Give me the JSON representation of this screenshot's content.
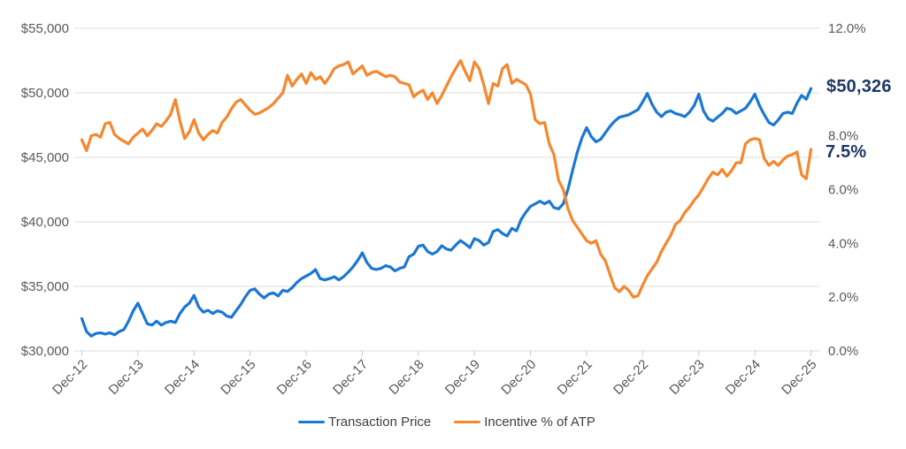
{
  "colors": {
    "price_line": "#1B77D4",
    "incentive_line": "#F5872D",
    "callout_text": "#1F3864",
    "axis_text": "#595959",
    "gridline": "#DCDCDC",
    "tick": "#C9C9C9",
    "legend_text": "#404040",
    "background": "#FFFFFF"
  },
  "end_labels": {
    "price": "$50,326",
    "incentive": "7.5%"
  },
  "legend": {
    "items": [
      {
        "label": "Transaction Price",
        "color": "#1B77D4"
      },
      {
        "label": "Incentive % of ATP",
        "color": "#F5872D"
      }
    ]
  },
  "chart_data": {
    "type": "line",
    "title": "",
    "x_start": "Dec-2012",
    "x_end": "Dec-2025",
    "frequency": "monthly",
    "grid": "horizontal",
    "legend_position": "bottom",
    "x_axis": {
      "tick_labels": [
        "Dec-12",
        "Dec-13",
        "Dec-14",
        "Dec-15",
        "Dec-16",
        "Dec-17",
        "Dec-18",
        "Dec-19",
        "Dec-20",
        "Dec-21",
        "Dec-22",
        "Dec-23",
        "Dec-24",
        "Dec-25"
      ],
      "months_per_tick": 12
    },
    "left_axis": {
      "title": "Transaction Price",
      "min": 30000,
      "max": 55000,
      "step": 5000,
      "ticks": [
        {
          "label": "$55,000",
          "value": 55000
        },
        {
          "label": "$50,000",
          "value": 50000
        },
        {
          "label": "$45,000",
          "value": 45000
        },
        {
          "label": "$40,000",
          "value": 40000
        },
        {
          "label": "$35,000",
          "value": 35000
        },
        {
          "label": "$30,000",
          "value": 30000
        }
      ]
    },
    "right_axis": {
      "title": "Incentive % of ATP",
      "min": 0,
      "max": 12,
      "step": 2,
      "ticks": [
        {
          "label": "12.0%",
          "value": 12
        },
        {
          "label": "8.0%",
          "value": 8
        },
        {
          "label": "6.0%",
          "value": 6
        },
        {
          "label": "4.0%",
          "value": 4
        },
        {
          "label": "2.0%",
          "value": 2
        },
        {
          "label": "0.0%",
          "value": 0
        }
      ],
      "note": "10.0% tick label hidden behind $50,326 callout"
    },
    "series": [
      {
        "name": "Transaction Price",
        "axis": "left",
        "color": "#1B77D4",
        "end_value": 50326,
        "values": [
          32500,
          31500,
          31150,
          31350,
          31400,
          31300,
          31400,
          31250,
          31500,
          31650,
          32300,
          33100,
          33700,
          32900,
          32100,
          32000,
          32300,
          32000,
          32200,
          32300,
          32200,
          32900,
          33400,
          33700,
          34300,
          33400,
          33000,
          33150,
          32900,
          33100,
          33000,
          32700,
          32600,
          33100,
          33600,
          34200,
          34700,
          34800,
          34400,
          34100,
          34400,
          34500,
          34250,
          34700,
          34600,
          34900,
          35300,
          35600,
          35800,
          36000,
          36300,
          35600,
          35500,
          35600,
          35750,
          35500,
          35750,
          36100,
          36500,
          37000,
          37600,
          36850,
          36400,
          36300,
          36400,
          36600,
          36500,
          36200,
          36400,
          36500,
          37300,
          37500,
          38100,
          38200,
          37700,
          37500,
          37700,
          38150,
          37900,
          37800,
          38200,
          38550,
          38300,
          38000,
          38700,
          38550,
          38200,
          38400,
          39250,
          39400,
          39100,
          38900,
          39500,
          39300,
          40200,
          40750,
          41200,
          41400,
          41600,
          41400,
          41600,
          41100,
          41000,
          41400,
          42500,
          44000,
          45400,
          46500,
          47300,
          46600,
          46200,
          46400,
          46900,
          47400,
          47800,
          48100,
          48200,
          48300,
          48500,
          48700,
          49300,
          49950,
          49100,
          48500,
          48150,
          48500,
          48600,
          48400,
          48300,
          48150,
          48500,
          49000,
          49900,
          48600,
          48000,
          47800,
          48100,
          48400,
          48800,
          48700,
          48400,
          48600,
          48800,
          49300,
          49900,
          49000,
          48300,
          47700,
          47500,
          47900,
          48400,
          48500,
          48400,
          49200,
          49800,
          49500,
          50326
        ]
      },
      {
        "name": "Incentive % of ATP",
        "axis": "right",
        "color": "#F5872D",
        "end_value": 7.5,
        "values": [
          7.85,
          7.45,
          8.0,
          8.05,
          7.95,
          8.45,
          8.5,
          8.05,
          7.9,
          7.8,
          7.7,
          7.95,
          8.1,
          8.25,
          8.0,
          8.2,
          8.45,
          8.35,
          8.55,
          8.8,
          9.35,
          8.55,
          7.9,
          8.15,
          8.6,
          8.1,
          7.85,
          8.05,
          8.2,
          8.1,
          8.5,
          8.7,
          9.0,
          9.25,
          9.35,
          9.15,
          8.95,
          8.8,
          8.85,
          8.95,
          9.05,
          9.2,
          9.4,
          9.6,
          10.25,
          9.85,
          10.1,
          10.3,
          9.95,
          10.35,
          10.1,
          10.2,
          9.95,
          10.2,
          10.5,
          10.6,
          10.65,
          10.75,
          10.3,
          10.45,
          10.6,
          10.25,
          10.35,
          10.4,
          10.3,
          10.2,
          10.25,
          10.2,
          10.0,
          9.95,
          9.9,
          9.45,
          9.6,
          9.7,
          9.35,
          9.6,
          9.2,
          9.5,
          9.85,
          10.2,
          10.5,
          10.8,
          10.4,
          10.05,
          10.75,
          10.5,
          9.9,
          9.2,
          9.95,
          9.85,
          10.5,
          10.65,
          9.95,
          10.1,
          10.0,
          9.9,
          9.55,
          8.6,
          8.45,
          8.5,
          7.7,
          7.3,
          6.35,
          6.0,
          5.3,
          4.85,
          4.6,
          4.35,
          4.1,
          4.0,
          4.1,
          3.6,
          3.35,
          2.85,
          2.35,
          2.2,
          2.4,
          2.25,
          2.0,
          2.05,
          2.45,
          2.8,
          3.05,
          3.3,
          3.7,
          4.0,
          4.3,
          4.7,
          4.85,
          5.15,
          5.35,
          5.6,
          5.8,
          6.1,
          6.4,
          6.65,
          6.55,
          6.75,
          6.5,
          6.7,
          7.0,
          7.0,
          7.7,
          7.85,
          7.9,
          7.85,
          7.15,
          6.9,
          7.05,
          6.9,
          7.1,
          7.25,
          7.3,
          7.4,
          6.55,
          6.4,
          7.5
        ]
      }
    ]
  }
}
